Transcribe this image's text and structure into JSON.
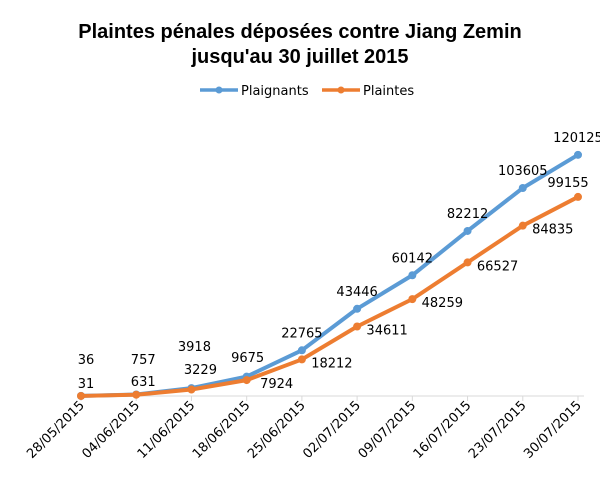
{
  "chart_data": {
    "type": "line",
    "title_line1": "Plaintes pénales déposées contre Jiang Zemin",
    "title_line2": "jusqu'au 30 juillet 2015",
    "categories": [
      "28/05/2015",
      "04/06/2015",
      "11/06/2015",
      "18/06/2015",
      "25/06/2015",
      "02/07/2015",
      "09/07/2015",
      "16/07/2015",
      "23/07/2015",
      "30/07/2015"
    ],
    "series": [
      {
        "name": "Plaignants",
        "color": "#5b9bd5",
        "values": [
          36,
          757,
          3918,
          9675,
          22765,
          43446,
          60142,
          82212,
          103605,
          120125
        ]
      },
      {
        "name": "Plaintes",
        "color": "#ed7d31",
        "values": [
          31,
          631,
          3229,
          7924,
          18212,
          34611,
          48259,
          66527,
          84835,
          99155
        ]
      }
    ],
    "ylim": [
      0,
      130000
    ],
    "grid": false,
    "legend_position": "top-center"
  }
}
